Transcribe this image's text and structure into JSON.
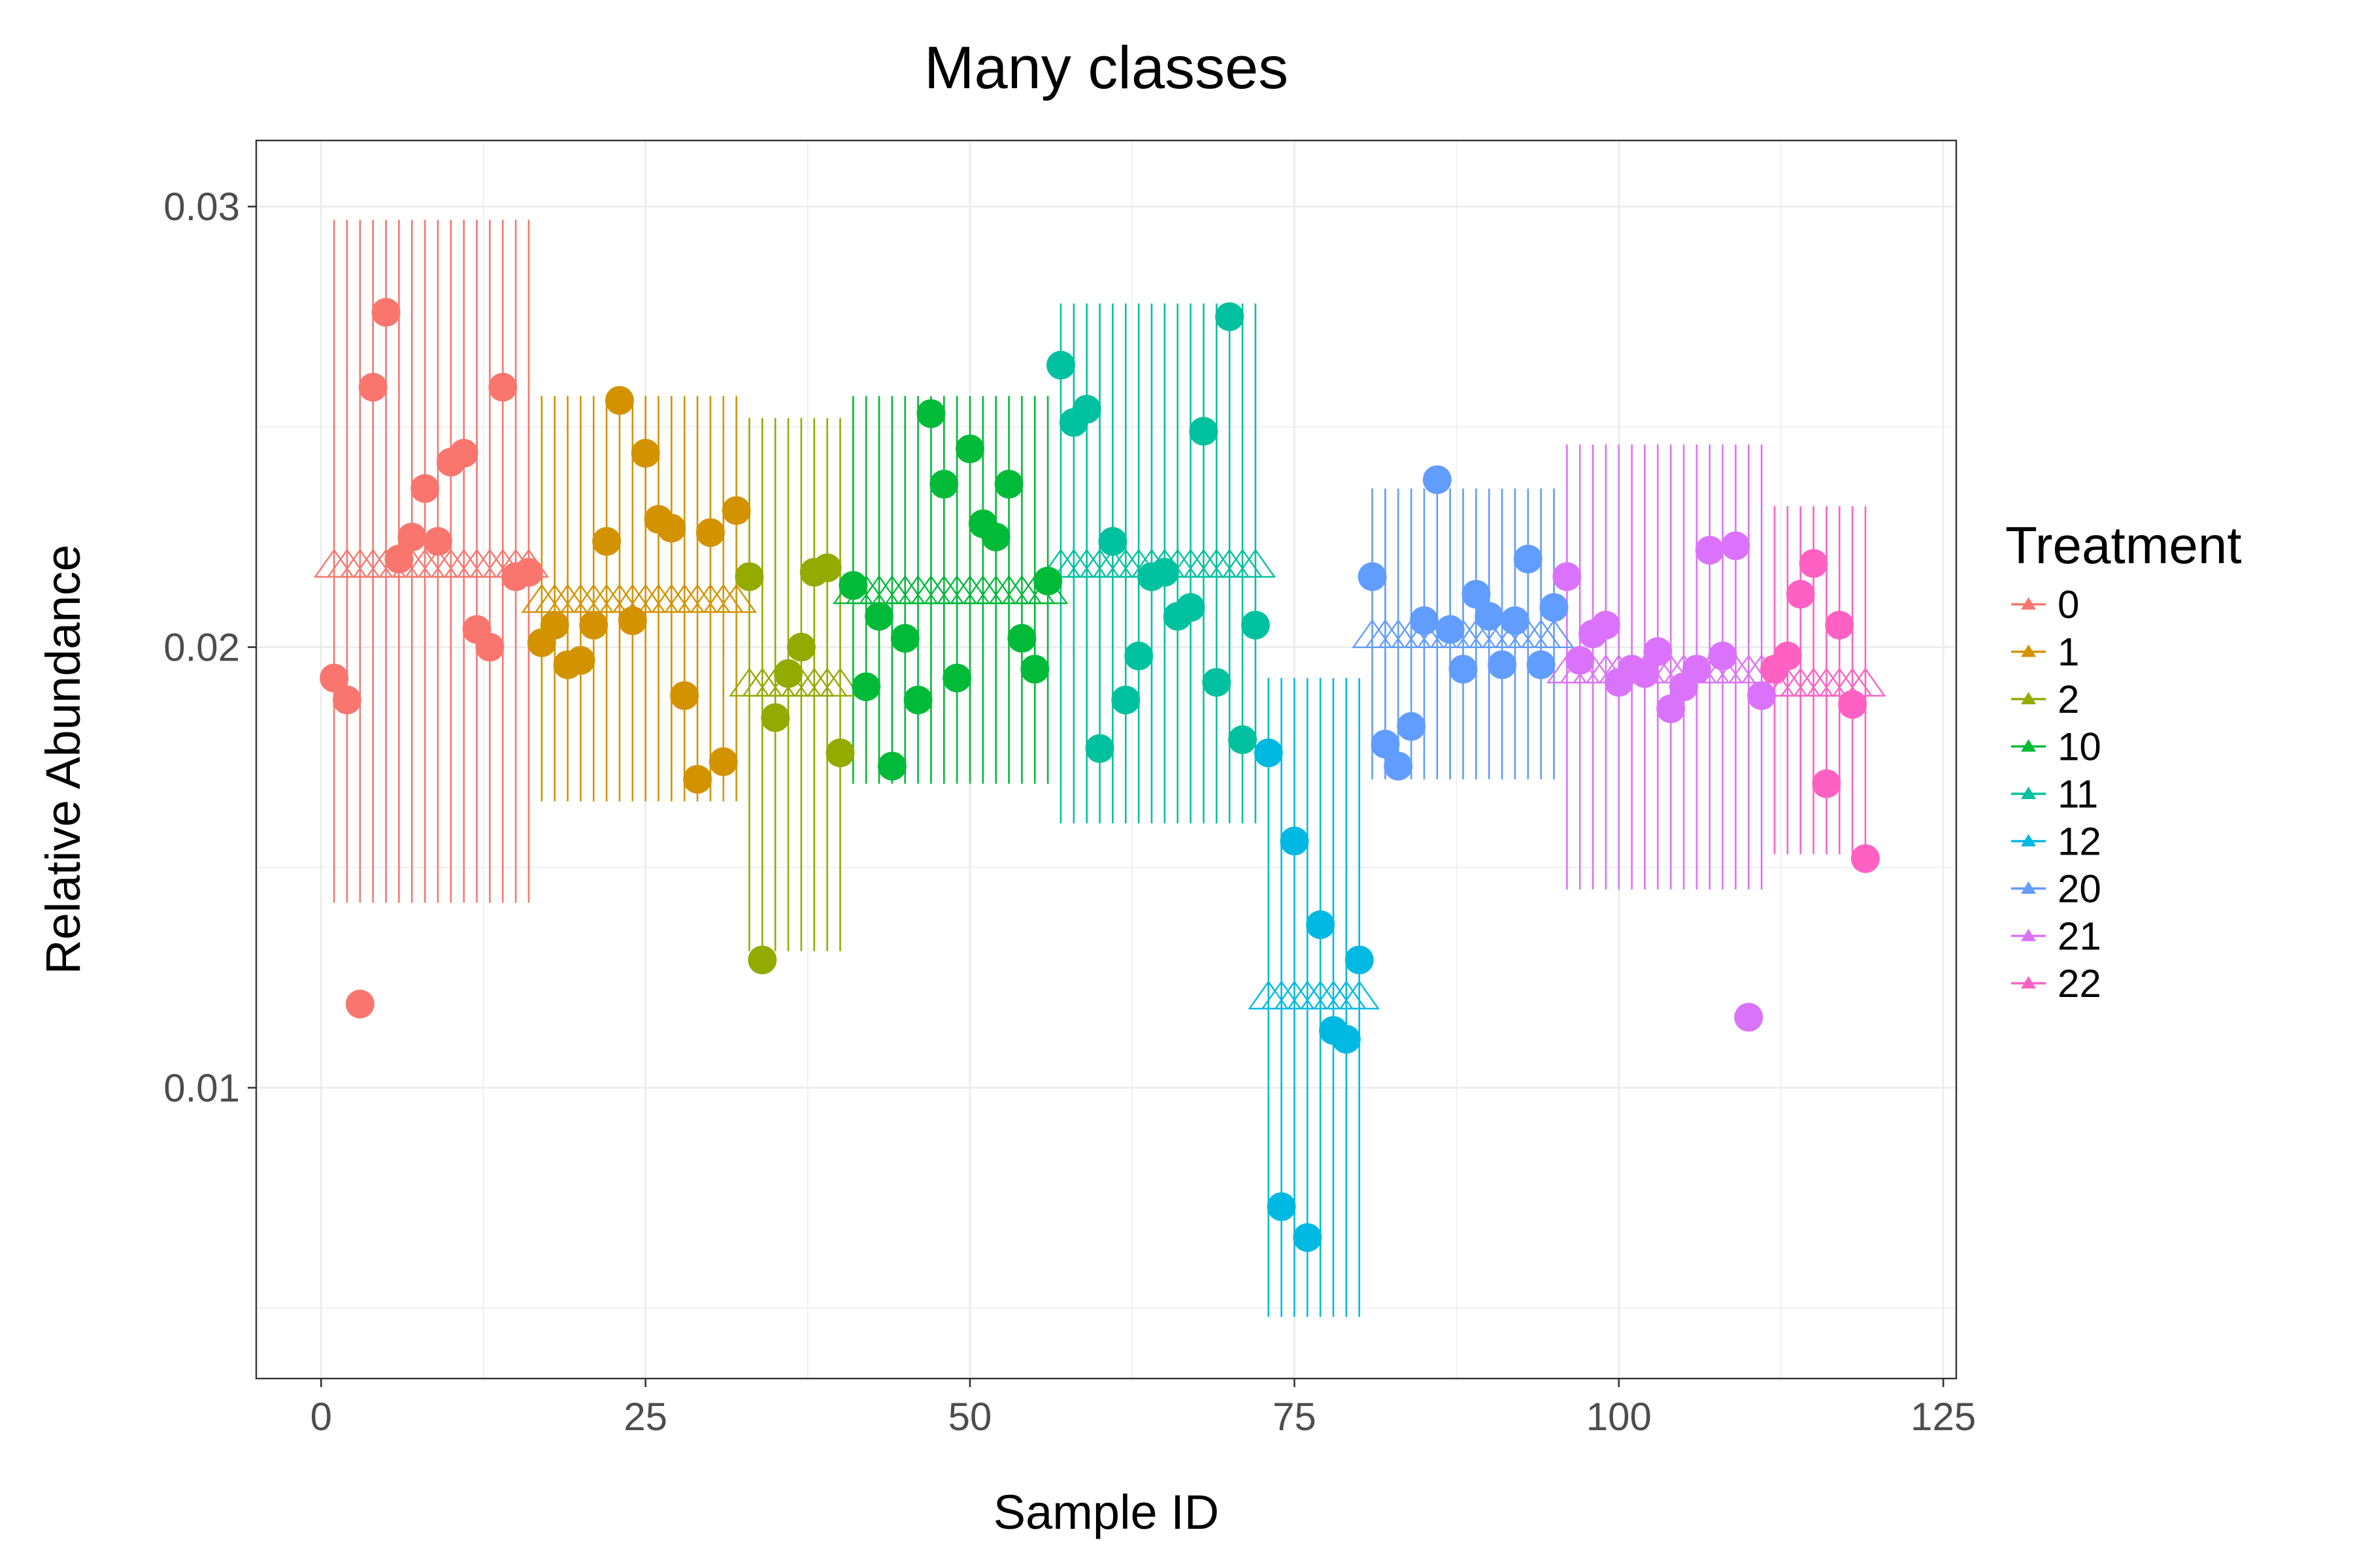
{
  "chart_data": {
    "type": "scatter",
    "title": "Many classes",
    "xlabel": "Sample ID",
    "ylabel": "Relative Abundance",
    "xlim": [
      -5,
      126
    ],
    "ylim": [
      0.0034,
      0.0315
    ],
    "x_ticks": [
      {
        "value": 0,
        "label": "0"
      },
      {
        "value": 25,
        "label": "25"
      },
      {
        "value": 50,
        "label": "50"
      },
      {
        "value": 75,
        "label": "75"
      },
      {
        "value": 100,
        "label": "100"
      },
      {
        "value": 125,
        "label": "125"
      }
    ],
    "y_ticks": [
      {
        "value": 0.01,
        "label": "0.01"
      },
      {
        "value": 0.02,
        "label": "0.02"
      },
      {
        "value": 0.03,
        "label": "0.03"
      }
    ],
    "grid": true,
    "legend": {
      "title": "Treatment",
      "position": "right"
    },
    "series": [
      {
        "name": "0",
        "color": "#F8766D",
        "start_x": 1,
        "mean": 0.0219,
        "lower": 0.0142,
        "upper": 0.0297,
        "values": [
          0.0193,
          0.0188,
          0.0119,
          0.0259,
          0.0276,
          0.022,
          0.0225,
          0.0236,
          0.0224,
          0.0242,
          0.0244,
          0.0204,
          0.02,
          0.0259,
          0.0216,
          0.0217
        ]
      },
      {
        "name": "1",
        "color": "#D39200",
        "start_x": 17,
        "mean": 0.0211,
        "lower": 0.0165,
        "upper": 0.0257,
        "values": [
          0.0201,
          0.0205,
          0.0196,
          0.0197,
          0.0205,
          0.0224,
          0.0256,
          0.0206,
          0.0244,
          0.0229,
          0.0227,
          0.0189,
          0.017,
          0.0226,
          0.0174,
          0.0231
        ]
      },
      {
        "name": "2",
        "color": "#93AA00",
        "start_x": 33,
        "mean": 0.0192,
        "lower": 0.0131,
        "upper": 0.0252,
        "values": [
          0.0216,
          0.0129,
          0.0184,
          0.0194,
          0.02,
          0.0217,
          0.0218,
          0.0176
        ]
      },
      {
        "name": "10",
        "color": "#00BA38",
        "start_x": 41,
        "mean": 0.0213,
        "lower": 0.0169,
        "upper": 0.0257,
        "values": [
          0.0214,
          0.0191,
          0.0207,
          0.0173,
          0.0202,
          0.0188,
          0.0253,
          0.0237,
          0.0193,
          0.0245,
          0.0228,
          0.0225,
          0.0237,
          0.0202,
          0.0195,
          0.0215
        ]
      },
      {
        "name": "11",
        "color": "#00C19F",
        "start_x": 57,
        "mean": 0.0219,
        "lower": 0.016,
        "upper": 0.0278,
        "values": [
          0.0264,
          0.0251,
          0.0254,
          0.0177,
          0.0224,
          0.0188,
          0.0198,
          0.0216,
          0.0217,
          0.0207,
          0.0209,
          0.0249,
          0.0192,
          0.0275,
          0.0179,
          0.0205
        ]
      },
      {
        "name": "12",
        "color": "#00B9E3",
        "start_x": 73,
        "mean": 0.0121,
        "lower": 0.0048,
        "upper": 0.0193,
        "values": [
          0.0176,
          0.0073,
          0.0156,
          0.0066,
          0.0137,
          0.0113,
          0.0111,
          0.0129
        ]
      },
      {
        "name": "20",
        "color": "#619CFF",
        "start_x": 81,
        "mean": 0.0203,
        "lower": 0.017,
        "upper": 0.0236,
        "values": [
          0.0216,
          0.0178,
          0.0173,
          0.0182,
          0.0206,
          0.0238,
          0.0204,
          0.0195,
          0.0212,
          0.0207,
          0.0196,
          0.0206,
          0.022,
          0.0196,
          0.0209
        ]
      },
      {
        "name": "21",
        "color": "#DB72FB",
        "start_x": 96,
        "mean": 0.0195,
        "lower": 0.0145,
        "upper": 0.0246,
        "values": [
          0.0216,
          0.0197,
          0.0203,
          0.0205,
          0.0192,
          0.0195,
          0.0194,
          0.0199,
          0.0186,
          0.0191,
          0.0195,
          0.0222,
          0.0198,
          0.0223,
          0.0116,
          0.0189
        ]
      },
      {
        "name": "22",
        "color": "#FF61C3",
        "start_x": 112,
        "mean": 0.0192,
        "lower": 0.0153,
        "upper": 0.0232,
        "values": [
          0.0195,
          0.0198,
          0.0212,
          0.0219,
          0.0169,
          0.0205,
          0.0187,
          0.0152
        ]
      }
    ]
  }
}
